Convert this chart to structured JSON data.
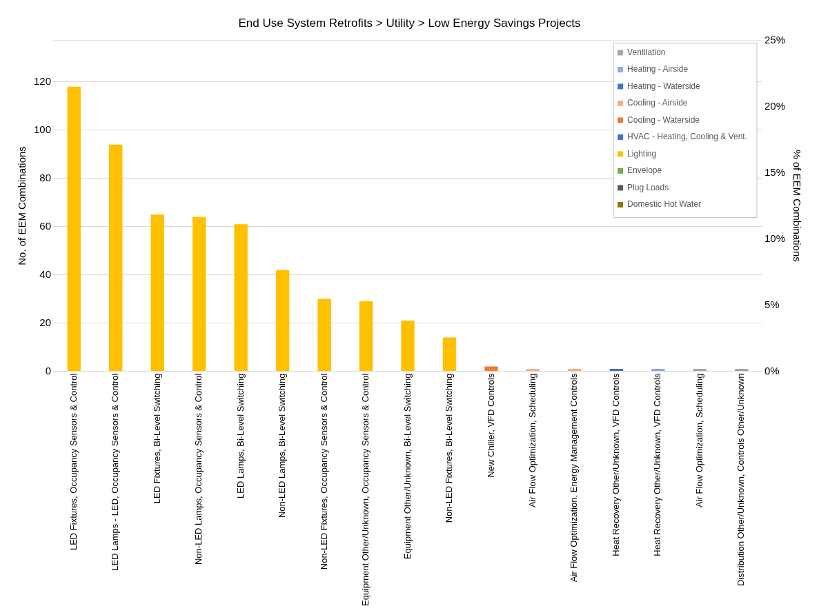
{
  "chart_data": {
    "type": "bar",
    "title": "End Use System Retrofits > Utility > Low Energy Savings Projects",
    "ylabel": "No. of EEM Combinations",
    "y2label": "% of EEM Combinations",
    "categories": [
      "LED Fixtures, Occupancy Sensors & Control",
      "LED Lamps - LED, Occupancy Sensors & Control",
      "LED Fixtures, Bi-Level Switching",
      "Non-LED Lamps, Occupancy Sensors & Control",
      "LED Lamps, Bi-Level Switching",
      "Non-LED Lamps, Bi-Level Switching",
      "Non-LED Fixtures, Occupancy Sensors & Control",
      "Equipment Other/Unknown, Occupancy Sensors & Control",
      "Equipment Other/Unknown, Bi-Level Switching",
      "Non-LED Fixtures, Bi-Level Switching",
      "New Chiller, VFD Controls",
      "Air Flow Optimization, Scheduling",
      "Air Flow Optimization, Energy Management Controls",
      "Heat Recovery Other/Unknown, VFD Controls",
      "Heat Recovery Other/Unknown, VFD Controls",
      "Air Flow Optimization, Scheduling",
      "Distribution Other/Unknown, Controls Other/Unknown"
    ],
    "series": [
      {
        "name": "Ventilation",
        "color": "#a5a5a5",
        "values": [
          null,
          null,
          null,
          null,
          null,
          null,
          null,
          null,
          null,
          null,
          null,
          null,
          null,
          null,
          null,
          1,
          1
        ]
      },
      {
        "name": "Heating - Airside",
        "color": "#8faadc",
        "values": [
          null,
          null,
          null,
          null,
          null,
          null,
          null,
          null,
          null,
          null,
          null,
          null,
          null,
          null,
          1,
          null,
          null
        ]
      },
      {
        "name": "Heating - Waterside",
        "color": "#4472c4",
        "values": [
          null,
          null,
          null,
          null,
          null,
          null,
          null,
          null,
          null,
          null,
          null,
          null,
          null,
          1,
          null,
          null,
          null
        ]
      },
      {
        "name": "Cooling - Airside",
        "color": "#f4b183",
        "values": [
          null,
          null,
          null,
          null,
          null,
          null,
          null,
          null,
          null,
          null,
          null,
          1,
          1,
          null,
          null,
          null,
          null
        ]
      },
      {
        "name": "Cooling - Waterside",
        "color": "#ed7d31",
        "values": [
          null,
          null,
          null,
          null,
          null,
          null,
          null,
          null,
          null,
          null,
          2,
          null,
          null,
          null,
          null,
          null,
          null
        ]
      },
      {
        "name": "HVAC - Heating, Cooling & Vent.",
        "color": "#4472c4",
        "values": [
          null,
          null,
          null,
          null,
          null,
          null,
          null,
          null,
          null,
          null,
          null,
          null,
          null,
          null,
          null,
          null,
          null
        ]
      },
      {
        "name": "Lighting",
        "color": "#ffc000",
        "values": [
          118,
          94,
          65,
          64,
          61,
          42,
          30,
          29,
          21,
          14,
          null,
          null,
          null,
          null,
          null,
          null,
          null
        ]
      },
      {
        "name": "Envelope",
        "color": "#70ad47",
        "values": [
          null,
          null,
          null,
          null,
          null,
          null,
          null,
          null,
          null,
          null,
          null,
          null,
          null,
          null,
          null,
          null,
          null
        ]
      },
      {
        "name": "Plug Loads",
        "color": "#595959",
        "values": [
          null,
          null,
          null,
          null,
          null,
          null,
          null,
          null,
          null,
          null,
          null,
          null,
          null,
          null,
          null,
          null,
          null
        ]
      },
      {
        "name": "Domestic Hot Water",
        "color": "#997300",
        "values": [
          null,
          null,
          null,
          null,
          null,
          null,
          null,
          null,
          null,
          null,
          null,
          null,
          null,
          null,
          null,
          null,
          null
        ]
      }
    ],
    "ylim": [
      0,
      137.25
    ],
    "yticks": [
      0,
      20,
      40,
      60,
      80,
      100,
      120
    ],
    "y2lim": [
      0,
      25
    ],
    "y2ticks": [
      {
        "value": 0,
        "label": "0%"
      },
      {
        "value": 5,
        "label": "5%"
      },
      {
        "value": 10,
        "label": "10%"
      },
      {
        "value": 15,
        "label": "15%"
      },
      {
        "value": 20,
        "label": "20%"
      },
      {
        "value": 25,
        "label": "25%"
      }
    ],
    "grid": "y",
    "legend": "top right"
  }
}
